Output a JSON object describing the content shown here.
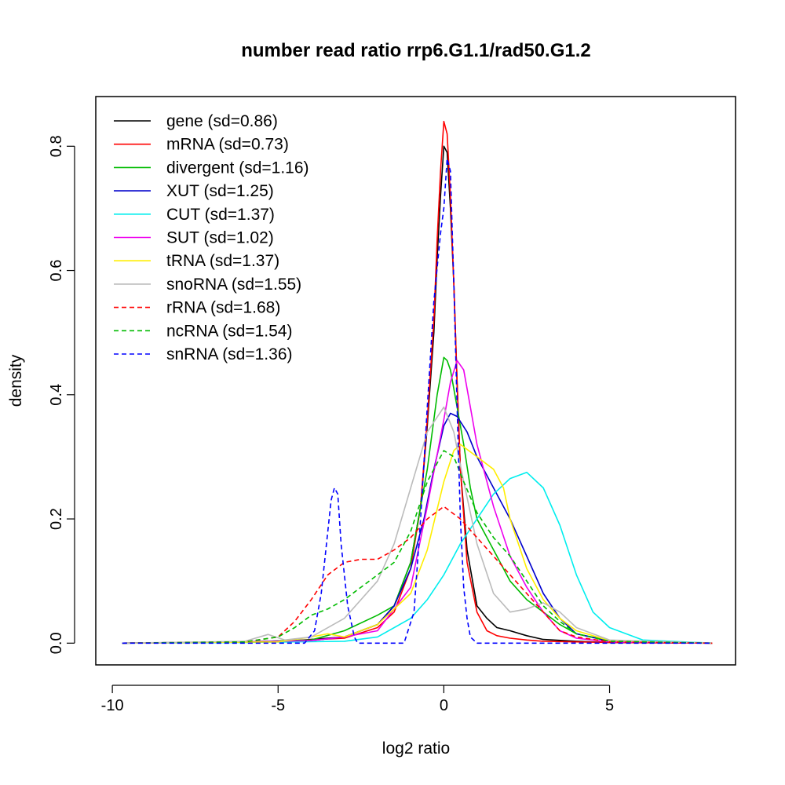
{
  "chart_data": {
    "type": "line",
    "title": "number read ratio rrp6.G1.1/rad50.G1.2",
    "xlabel": "log2 ratio",
    "ylabel": "density",
    "xlim": [
      -10.5,
      8.8
    ],
    "ylim": [
      -0.035,
      0.88
    ],
    "xticks": [
      -10,
      -5,
      0,
      5
    ],
    "xtick_labels": [
      "-10",
      "-5",
      "0",
      "5"
    ],
    "yticks": [
      0.0,
      0.2,
      0.4,
      0.6,
      0.8
    ],
    "ytick_labels": [
      "0.0",
      "0.2",
      "0.4",
      "0.6",
      "0.8"
    ],
    "legend_position": "top-left",
    "series": [
      {
        "name": "gene",
        "label": "gene (sd=0.86)",
        "color": "#000000",
        "dash": "solid",
        "x": [
          -9.7,
          -6,
          -4.5,
          -3,
          -2,
          -1.5,
          -1,
          -0.7,
          -0.5,
          -0.3,
          -0.2,
          -0.1,
          0,
          0.1,
          0.2,
          0.3,
          0.4,
          0.5,
          0.7,
          1,
          1.3,
          1.6,
          2,
          2.5,
          3,
          4,
          5,
          8.1
        ],
        "y": [
          0,
          0.002,
          0.004,
          0.01,
          0.03,
          0.06,
          0.13,
          0.22,
          0.35,
          0.5,
          0.62,
          0.72,
          0.8,
          0.79,
          0.7,
          0.58,
          0.42,
          0.28,
          0.15,
          0.06,
          0.04,
          0.025,
          0.02,
          0.012,
          0.006,
          0.003,
          0.001,
          0
        ]
      },
      {
        "name": "mRNA",
        "label": "mRNA (sd=0.73)",
        "color": "#ff0000",
        "dash": "solid",
        "x": [
          -9.7,
          -6,
          -4.5,
          -3,
          -2,
          -1.5,
          -1,
          -0.7,
          -0.5,
          -0.3,
          -0.2,
          -0.1,
          0,
          0.1,
          0.2,
          0.3,
          0.4,
          0.5,
          0.7,
          1,
          1.3,
          1.6,
          2,
          2.5,
          3,
          4,
          5,
          8.1
        ],
        "y": [
          0,
          0.002,
          0.004,
          0.008,
          0.025,
          0.05,
          0.12,
          0.22,
          0.36,
          0.52,
          0.65,
          0.76,
          0.84,
          0.82,
          0.72,
          0.58,
          0.42,
          0.28,
          0.13,
          0.05,
          0.02,
          0.012,
          0.008,
          0.005,
          0.003,
          0.002,
          0.001,
          0
        ]
      },
      {
        "name": "divergent",
        "label": "divergent (sd=1.16)",
        "color": "#00bb00",
        "dash": "solid",
        "x": [
          -9.7,
          -6,
          -4,
          -3,
          -2,
          -1.5,
          -1,
          -0.5,
          -0.2,
          0,
          0.1,
          0.2,
          0.4,
          0.6,
          0.8,
          1,
          1.3,
          1.6,
          2,
          2.5,
          3,
          3.5,
          4,
          5,
          8.1
        ],
        "y": [
          0,
          0.002,
          0.005,
          0.02,
          0.045,
          0.06,
          0.13,
          0.28,
          0.4,
          0.46,
          0.455,
          0.44,
          0.38,
          0.32,
          0.25,
          0.2,
          0.17,
          0.14,
          0.1,
          0.07,
          0.05,
          0.03,
          0.015,
          0.004,
          0
        ]
      },
      {
        "name": "XUT",
        "label": "XUT (sd=1.25)",
        "color": "#0000cc",
        "dash": "solid",
        "x": [
          -9.7,
          -6,
          -4,
          -3,
          -2,
          -1.5,
          -1,
          -0.6,
          -0.3,
          0,
          0.2,
          0.4,
          0.7,
          1,
          1.5,
          2,
          2.5,
          3,
          3.5,
          4,
          5,
          8.1
        ],
        "y": [
          0,
          0.002,
          0.004,
          0.01,
          0.03,
          0.06,
          0.12,
          0.2,
          0.28,
          0.35,
          0.37,
          0.365,
          0.34,
          0.3,
          0.25,
          0.2,
          0.14,
          0.08,
          0.04,
          0.015,
          0.003,
          0
        ]
      },
      {
        "name": "CUT",
        "label": "CUT (sd=1.37)",
        "color": "#00eeee",
        "dash": "solid",
        "x": [
          -9.7,
          -6,
          -3,
          -2,
          -1,
          -0.5,
          0,
          0.5,
          1,
          1.5,
          2,
          2.5,
          3,
          3.5,
          4,
          4.5,
          5,
          6,
          8.1
        ],
        "y": [
          0,
          0.001,
          0.003,
          0.01,
          0.04,
          0.07,
          0.11,
          0.16,
          0.2,
          0.24,
          0.265,
          0.275,
          0.25,
          0.19,
          0.11,
          0.05,
          0.025,
          0.005,
          0
        ]
      },
      {
        "name": "SUT",
        "label": "SUT (sd=1.02)",
        "color": "#ee00ee",
        "dash": "solid",
        "x": [
          -9.7,
          -6,
          -4,
          -3,
          -2,
          -1,
          -0.5,
          0,
          0.2,
          0.4,
          0.6,
          0.8,
          1,
          1.5,
          2,
          2.5,
          3,
          3.5,
          4,
          5,
          8.1
        ],
        "y": [
          0,
          0.002,
          0.004,
          0.01,
          0.02,
          0.09,
          0.22,
          0.36,
          0.42,
          0.455,
          0.44,
          0.38,
          0.32,
          0.22,
          0.14,
          0.09,
          0.05,
          0.02,
          0.008,
          0.002,
          0
        ]
      },
      {
        "name": "tRNA",
        "label": "tRNA (sd=1.37)",
        "color": "#ffee00",
        "dash": "solid",
        "x": [
          -9.7,
          -5,
          -4,
          -3.5,
          -3,
          -2,
          -1,
          -0.5,
          0,
          0.3,
          0.5,
          1,
          1.5,
          1.8,
          2,
          2.5,
          3,
          3.5,
          4,
          5,
          8.1
        ],
        "y": [
          0,
          0.002,
          0.01,
          0.015,
          0.01,
          0.03,
          0.08,
          0.15,
          0.26,
          0.31,
          0.32,
          0.3,
          0.28,
          0.25,
          0.2,
          0.12,
          0.07,
          0.04,
          0.02,
          0.004,
          0
        ]
      },
      {
        "name": "snoRNA",
        "label": "snoRNA (sd=1.55)",
        "color": "#bbbbbb",
        "dash": "solid",
        "x": [
          -9.7,
          -6,
          -5.3,
          -4.8,
          -4,
          -3,
          -2,
          -1.5,
          -1,
          -0.5,
          0,
          0.3,
          0.6,
          1,
          1.5,
          2,
          2.5,
          3,
          3.5,
          4,
          5,
          8.1
        ],
        "y": [
          0,
          0.003,
          0.014,
          0.005,
          0.01,
          0.04,
          0.1,
          0.16,
          0.25,
          0.34,
          0.38,
          0.34,
          0.26,
          0.16,
          0.08,
          0.05,
          0.055,
          0.065,
          0.05,
          0.025,
          0.005,
          0
        ]
      },
      {
        "name": "rRNA",
        "label": "rRNA (sd=1.68)",
        "color": "#ff0000",
        "dash": "dashed",
        "x": [
          -9.7,
          -6,
          -5,
          -4.5,
          -4,
          -3.5,
          -3,
          -2.5,
          -2,
          -1.5,
          -1,
          -0.5,
          0,
          0.5,
          1,
          1.5,
          2,
          2.5,
          3,
          3.5,
          4,
          5,
          8.1
        ],
        "y": [
          0,
          0.002,
          0.01,
          0.035,
          0.07,
          0.11,
          0.13,
          0.135,
          0.135,
          0.15,
          0.17,
          0.2,
          0.22,
          0.2,
          0.17,
          0.14,
          0.11,
          0.08,
          0.05,
          0.02,
          0.01,
          0.002,
          0
        ]
      },
      {
        "name": "ncRNA",
        "label": "ncRNA (sd=1.54)",
        "color": "#00bb00",
        "dash": "dashed",
        "x": [
          -9.7,
          -6,
          -5,
          -4.5,
          -4,
          -3.5,
          -3,
          -2.5,
          -2,
          -1.5,
          -1,
          -0.5,
          0,
          0.3,
          0.6,
          1,
          1.5,
          2,
          2.5,
          3,
          3.5,
          4,
          5,
          8.1
        ],
        "y": [
          0,
          0.002,
          0.01,
          0.025,
          0.045,
          0.055,
          0.07,
          0.09,
          0.11,
          0.13,
          0.18,
          0.26,
          0.31,
          0.3,
          0.26,
          0.21,
          0.17,
          0.14,
          0.1,
          0.06,
          0.035,
          0.015,
          0.003,
          0
        ]
      },
      {
        "name": "snRNA",
        "label": "snRNA (sd=1.36)",
        "color": "#0000ff",
        "dash": "dashed",
        "x": [
          -9.7,
          -4.2,
          -3.9,
          -3.7,
          -3.5,
          -3.4,
          -3.3,
          -3.2,
          -3.1,
          -2.9,
          -2.7,
          -2.6,
          -1.2,
          -0.9,
          -0.7,
          -0.5,
          -0.3,
          -0.1,
          0,
          0.1,
          0.2,
          0.3,
          0.4,
          0.5,
          0.6,
          0.7,
          0.8,
          1,
          8.1
        ],
        "y": [
          0,
          0,
          0.02,
          0.08,
          0.18,
          0.23,
          0.25,
          0.24,
          0.16,
          0.06,
          0.01,
          0,
          0,
          0.05,
          0.2,
          0.38,
          0.55,
          0.66,
          0.7,
          0.78,
          0.76,
          0.58,
          0.38,
          0.2,
          0.09,
          0.04,
          0.01,
          0,
          0
        ]
      }
    ]
  }
}
